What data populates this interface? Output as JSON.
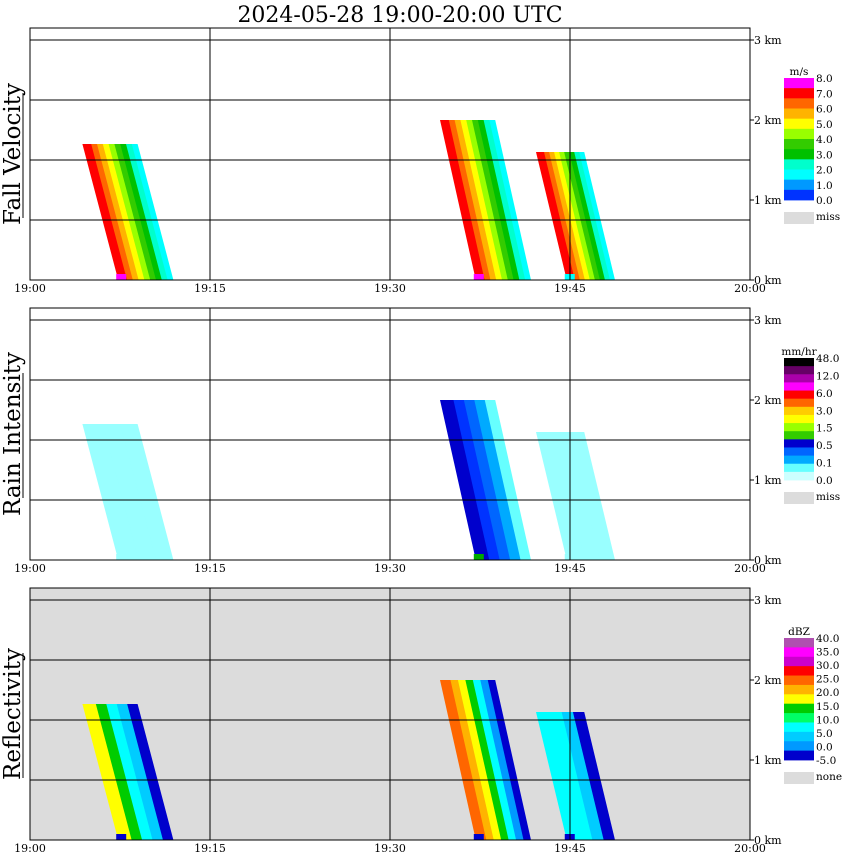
{
  "title": "2024-05-28   19:00-20:00 UTC",
  "x_tick_labels": [
    "19:00",
    "19:15",
    "19:30",
    "19:45",
    "20:00"
  ],
  "height_tick_labels": [
    "0 km",
    "1 km",
    "2 km",
    "3 km"
  ],
  "chart_data": [
    {
      "type": "heatmap",
      "ylabel": "Fall Velocity",
      "x_range": [
        "19:00",
        "20:00"
      ],
      "y_range_km": [
        0,
        3.2
      ],
      "grid": true,
      "legend_placement": "right",
      "colorbar": {
        "unit": "m/s",
        "labels": [
          "8.0",
          "7.0",
          "6.0",
          "5.0",
          "4.0",
          "3.0",
          "2.0",
          "1.0",
          "0.0"
        ],
        "colors": [
          "#ff00ff",
          "#ff0000",
          "#ff6600",
          "#ffb300",
          "#ffff00",
          "#99ff00",
          "#33cc00",
          "#00c000",
          "#00ffcc",
          "#00ffff",
          "#0099ff",
          "#0033ff"
        ],
        "missing_label": "miss",
        "missing_color": "#dcdcdc"
      },
      "background_color": "#ffffff",
      "echoes": [
        {
          "t0": 4.2,
          "t1": 11.7,
          "top_km": 1.7,
          "profile": [
            "#ff0000",
            "#ff6600",
            "#ffb300",
            "#ffff00",
            "#99ff00",
            "#33cc00",
            "#00c000",
            "#00ffcc",
            "#00ffff"
          ],
          "base_accent": "#ff00ff"
        },
        {
          "t0": 34.0,
          "t1": 41.5,
          "top_km": 2.0,
          "profile": [
            "#ff0000",
            "#ff6600",
            "#ffb300",
            "#ffff00",
            "#99ff00",
            "#33cc00",
            "#00c000",
            "#00ffcc",
            "#00ffff"
          ],
          "base_accent": "#ff00ff"
        },
        {
          "t0": 42.0,
          "t1": 48.5,
          "top_km": 1.6,
          "profile": [
            "#ff0000",
            "#ff6600",
            "#ffb300",
            "#ffff00",
            "#99ff00",
            "#33cc00",
            "#00c000",
            "#00ffcc",
            "#00ffff"
          ],
          "base_accent": "#00ffff"
        }
      ]
    },
    {
      "type": "heatmap",
      "ylabel": "Rain Intensity",
      "x_range": [
        "19:00",
        "20:00"
      ],
      "y_range_km": [
        0,
        3.2
      ],
      "grid": true,
      "legend_placement": "right",
      "colorbar": {
        "unit": "mm/hr",
        "labels": [
          "48.0",
          "12.0",
          "6.0",
          "3.0",
          "1.5",
          "0.5",
          "0.1",
          "0.0"
        ],
        "colors": [
          "#000000",
          "#660066",
          "#aa00aa",
          "#ff00ff",
          "#ff0000",
          "#ff6600",
          "#ffcc00",
          "#ffff00",
          "#99ff00",
          "#33cc00",
          "#0000cc",
          "#0066ff",
          "#00aaff",
          "#66ffff",
          "#ccffff"
        ],
        "missing_label": "miss",
        "missing_color": "#dcdcdc"
      },
      "background_color": "#ffffff",
      "echoes": [
        {
          "t0": 4.2,
          "t1": 11.7,
          "top_km": 1.7,
          "profile": [
            "#99ffff",
            "#99ffff",
            "#99ffff"
          ],
          "base_accent": "#99ffff"
        },
        {
          "t0": 34.0,
          "t1": 41.5,
          "top_km": 2.0,
          "profile": [
            "#0000cc",
            "#0033ff",
            "#0066ff",
            "#00aaff",
            "#66ffff"
          ],
          "base_accent": "#00aa00"
        },
        {
          "t0": 42.0,
          "t1": 48.5,
          "top_km": 1.6,
          "profile": [
            "#99ffff",
            "#99ffff",
            "#99ffff"
          ],
          "base_accent": "#99ffff"
        }
      ]
    },
    {
      "type": "heatmap",
      "ylabel": "Reflectivity",
      "x_range": [
        "19:00",
        "20:00"
      ],
      "y_range_km": [
        0,
        3.2
      ],
      "grid": true,
      "legend_placement": "right",
      "colorbar": {
        "unit": "dBZ",
        "labels": [
          "40.0",
          "35.0",
          "30.0",
          "25.0",
          "20.0",
          "15.0",
          "10.0",
          "5.0",
          "0.0",
          "-5.0"
        ],
        "colors": [
          "#b050b0",
          "#ff00ff",
          "#cc00cc",
          "#ff0000",
          "#ff6600",
          "#ffb300",
          "#ffff00",
          "#00cc00",
          "#00ff66",
          "#00ffff",
          "#00ccff",
          "#0099ff",
          "#0000cc"
        ],
        "missing_label": "none",
        "missing_color": "#dcdcdc"
      },
      "background_color": "#dcdcdc",
      "echoes": [
        {
          "t0": 4.2,
          "t1": 11.7,
          "top_km": 1.7,
          "profile": [
            "#ffff00",
            "#00cc00",
            "#00ffff",
            "#00ccff",
            "#0000cc"
          ],
          "base_accent": "#0000cc"
        },
        {
          "t0": 34.0,
          "t1": 41.5,
          "top_km": 2.0,
          "profile": [
            "#ff6600",
            "#ffb300",
            "#ffff00",
            "#00cc00",
            "#00ffff",
            "#0099ff",
            "#0000cc"
          ],
          "base_accent": "#0000cc"
        },
        {
          "t0": 42.0,
          "t1": 48.5,
          "top_km": 1.6,
          "profile": [
            "#00ffff",
            "#00ffff",
            "#00ccff",
            "#0000cc"
          ],
          "base_accent": "#0000cc"
        }
      ]
    }
  ]
}
